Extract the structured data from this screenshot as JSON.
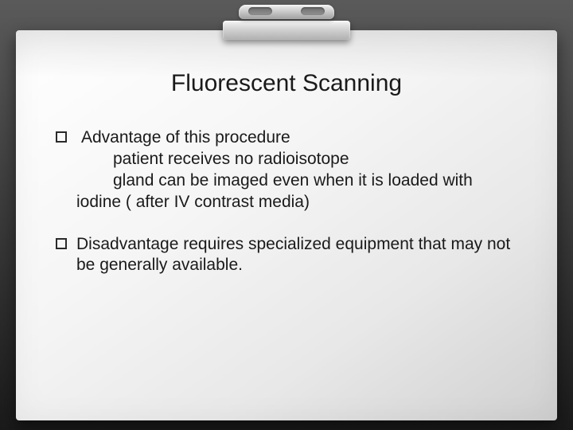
{
  "slide": {
    "title": "Fluorescent Scanning",
    "bullets": [
      {
        "lead": " Advantage of this procedure",
        "line2": "patient receives no radioisotope",
        "line3": "gland can be imaged even when it is loaded with",
        "line4": "iodine ( after IV contrast media)"
      },
      {
        "text": "Disadvantage requires specialized equipment that may not be generally available."
      }
    ]
  },
  "style": {
    "background_gradient": [
      "#5a5a5a",
      "#1a1a1a"
    ],
    "paper_gradient": [
      "#ffffff",
      "#d0d0d0"
    ],
    "title_fontsize": 30,
    "body_fontsize": 21,
    "text_color": "#1a1a1a",
    "bullet_border_color": "#2a2a2a"
  }
}
